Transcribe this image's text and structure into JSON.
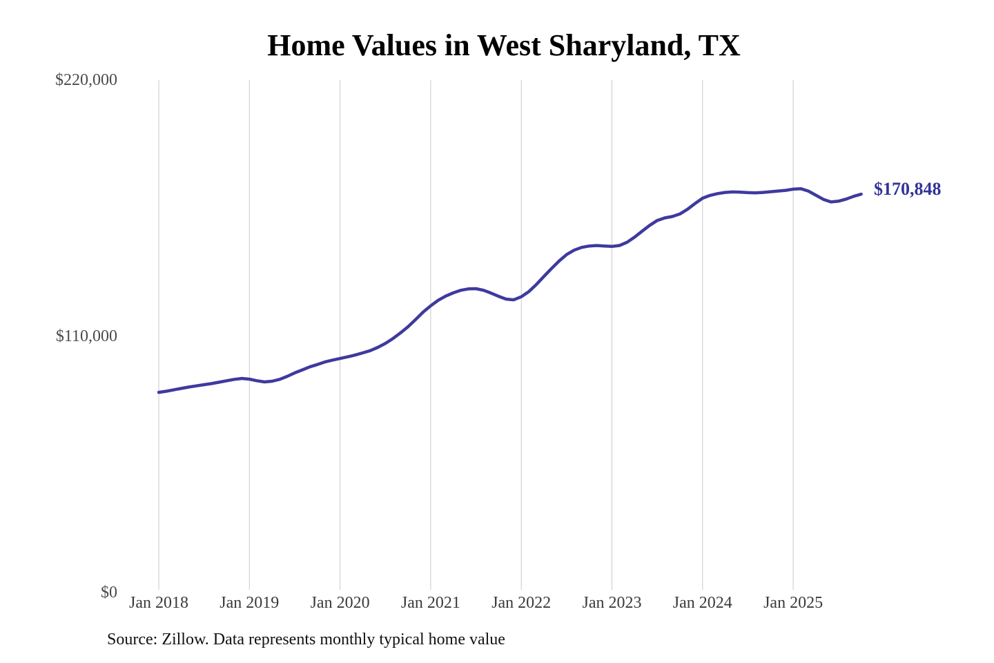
{
  "title": "Home Values in West Sharyland, TX",
  "source_note": "Source: Zillow. Data represents monthly typical home value",
  "latest_value_label": "$170,848",
  "colors": {
    "line": "#3e3a9e",
    "latest_value_label": "#333399",
    "gridline": "#c9c9c9",
    "axis_text": "#4a4a4a",
    "title_text": "#000000"
  },
  "chart_data": {
    "type": "line",
    "title": "Home Values in West Sharyland, TX",
    "xlabel": "",
    "ylabel": "",
    "ylim": [
      0,
      220000
    ],
    "y_tick_labels": [
      "$0",
      "$110,000",
      "$220,000"
    ],
    "y_tick_values": [
      0,
      110000,
      220000
    ],
    "x_tick_labels": [
      "Jan 2018",
      "Jan 2019",
      "Jan 2020",
      "Jan 2021",
      "Jan 2022",
      "Jan 2023",
      "Jan 2024",
      "Jan 2025"
    ],
    "grid": "vertical-only",
    "legend": "none",
    "x_interval": "monthly",
    "x_start": "2018-01",
    "x_end": "2025-10",
    "series": [
      {
        "name": "Typical home value",
        "values": [
          85400,
          85900,
          86500,
          87100,
          87700,
          88200,
          88700,
          89200,
          89800,
          90400,
          91000,
          91400,
          91100,
          90400,
          89900,
          90200,
          91000,
          92300,
          93800,
          95100,
          96400,
          97400,
          98500,
          99300,
          100000,
          100700,
          101500,
          102400,
          103400,
          104800,
          106500,
          108600,
          111000,
          113700,
          116800,
          120000,
          122700,
          125100,
          126900,
          128300,
          129400,
          130000,
          130100,
          129400,
          128200,
          126800,
          125600,
          125300,
          126600,
          128800,
          131900,
          135400,
          138800,
          142000,
          144800,
          146700,
          147900,
          148500,
          148700,
          148500,
          148300,
          148700,
          150100,
          152300,
          154900,
          157400,
          159500,
          160600,
          161200,
          162300,
          164300,
          166800,
          169100,
          170300,
          171100,
          171600,
          171800,
          171700,
          171500,
          171400,
          171600,
          171900,
          172200,
          172500,
          173000,
          173200,
          172200,
          170400,
          168600,
          167500,
          167800,
          168700,
          169900,
          170848
        ]
      }
    ],
    "annotations": [
      {
        "text": "$170,848",
        "target": "last-point"
      }
    ]
  }
}
